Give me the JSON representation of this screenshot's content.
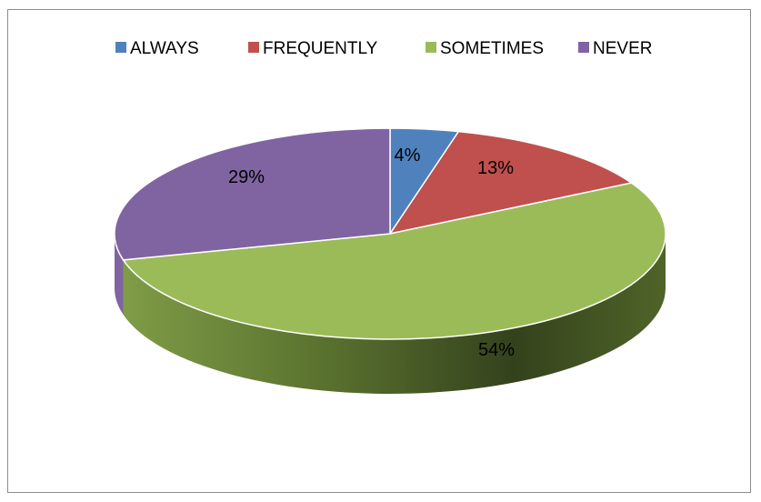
{
  "chart_data": {
    "type": "pie",
    "style": "3d",
    "legend_position": "top",
    "categories": [
      "ALWAYS",
      "FREQUENTLY",
      "SOMETIMES",
      "NEVER"
    ],
    "values": [
      4,
      13,
      54,
      29
    ],
    "labels": [
      "4%",
      "13%",
      "54%",
      "29%"
    ],
    "colors": [
      "#4f81bd",
      "#c0504d",
      "#9bbb59",
      "#8064a2"
    ]
  }
}
